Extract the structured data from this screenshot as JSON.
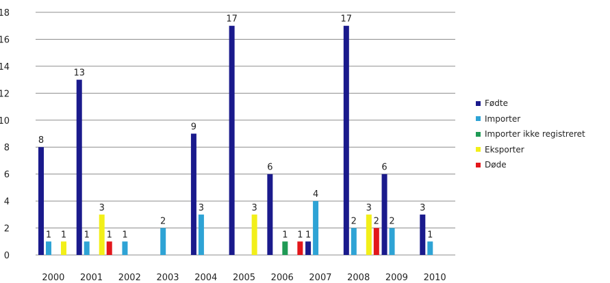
{
  "chart_data": {
    "type": "bar",
    "title": "",
    "xlabel": "",
    "ylabel": "",
    "ylim": [
      0,
      18
    ],
    "yticks": [
      0,
      2,
      4,
      6,
      8,
      10,
      12,
      14,
      16,
      18
    ],
    "grid": true,
    "legend_position": "right",
    "categories": [
      "2000",
      "2001",
      "2002",
      "2003",
      "2004",
      "2005",
      "2006",
      "2007",
      "2008",
      "2009",
      "2010"
    ],
    "series": [
      {
        "name": "Fødte",
        "color": "#1a1a8c",
        "values": [
          8,
          13,
          null,
          null,
          9,
          17,
          6,
          1,
          17,
          6,
          3
        ]
      },
      {
        "name": "Importer",
        "color": "#2ea3d5",
        "values": [
          1,
          1,
          1,
          2,
          3,
          null,
          null,
          4,
          2,
          2,
          1
        ]
      },
      {
        "name": "Importer ikke registreret",
        "color": "#1f9a55",
        "values": [
          null,
          null,
          null,
          null,
          null,
          null,
          1,
          null,
          null,
          null,
          null
        ]
      },
      {
        "name": "Eksporter",
        "color": "#f2ef19",
        "values": [
          1,
          3,
          null,
          null,
          null,
          3,
          null,
          null,
          3,
          null,
          null
        ]
      },
      {
        "name": "Døde",
        "color": "#e3171b",
        "values": [
          null,
          1,
          null,
          null,
          null,
          null,
          1,
          null,
          2,
          null,
          null
        ]
      }
    ]
  }
}
